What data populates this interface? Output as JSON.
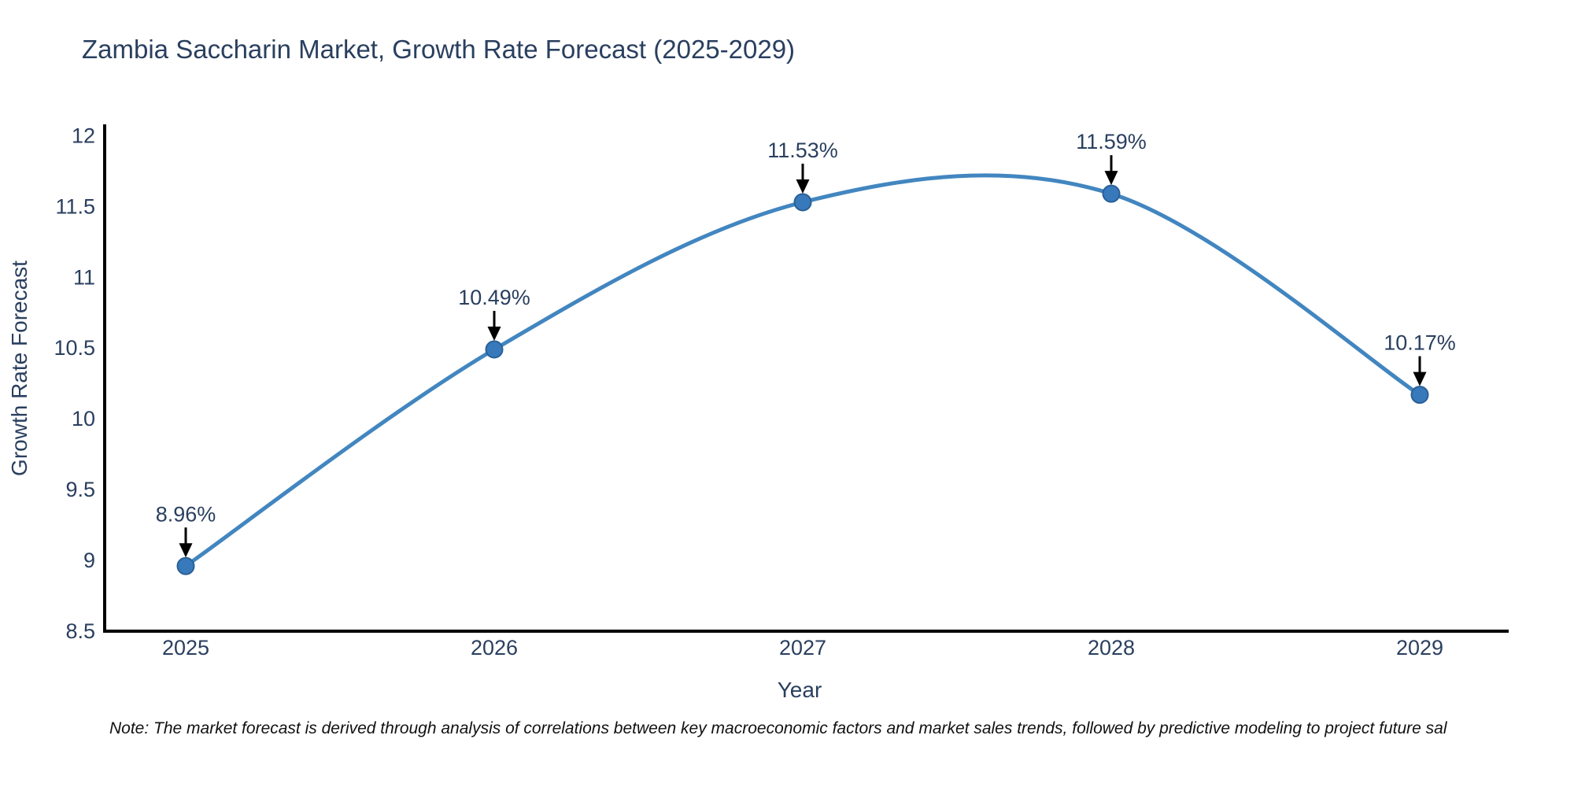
{
  "chart_data": {
    "type": "line",
    "line_shape": "spline",
    "title": "Zambia Saccharin Market, Growth Rate Forecast (2025-2029)",
    "xlabel": "Year",
    "ylabel": "Growth Rate Forecast",
    "categories": [
      "2025",
      "2026",
      "2027",
      "2028",
      "2029"
    ],
    "series": [
      {
        "name": "Growth Rate Forecast",
        "values": [
          8.96,
          10.49,
          11.53,
          11.59,
          10.17
        ],
        "point_labels": [
          "8.96%",
          "10.49%",
          "11.53%",
          "11.59%",
          "10.17%"
        ]
      }
    ],
    "ylim": [
      8.5,
      12.08
    ],
    "yticks": [
      8.5,
      9,
      9.5,
      10,
      10.5,
      11,
      11.5,
      12
    ],
    "grid": false,
    "legend": "none",
    "annotation_style": "value labels with black down-arrows above each data point",
    "colors": {
      "line": "#4286c0",
      "marker_fill": "#3879bc",
      "marker_edge": "#2a6096",
      "axis_line": "#000000",
      "tick_text": "#2a3f5f",
      "title_text": "#2a3f5f",
      "annotation_text": "#2a3f5f",
      "arrow": "#000000",
      "note_text": "#111111",
      "background": "#ffffff"
    }
  },
  "note": {
    "text": "Note: The market forecast is derived through analysis of correlations between key macroeconomic factors and market sales trends, followed by predictive modeling to project future sal"
  }
}
